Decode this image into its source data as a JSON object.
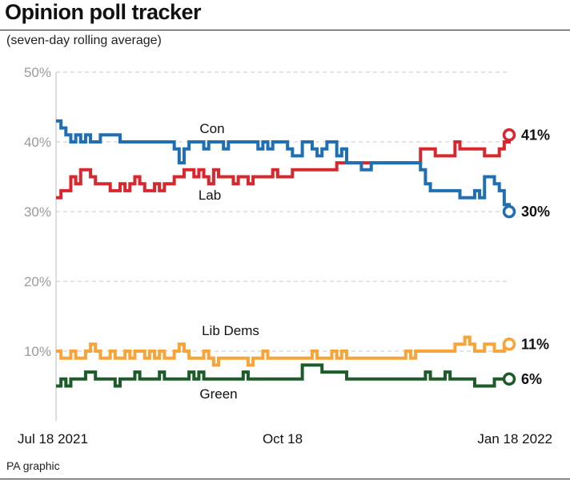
{
  "title": "Opinion poll tracker",
  "subtitle": "(seven-day rolling average)",
  "credit": "PA graphic",
  "chart_data": {
    "type": "line",
    "title": "Opinion poll tracker",
    "subtitle": "(seven-day rolling average)",
    "ylabel": "",
    "xlabel": "",
    "ylim": [
      0,
      50
    ],
    "yticks": [
      10,
      20,
      30,
      40,
      50
    ],
    "ytick_labels": [
      "10%",
      "20%",
      "30%",
      "40%",
      "50%"
    ],
    "grid": "dashed horizontal",
    "x_domain_days": [
      0,
      184
    ],
    "xticks": [
      {
        "day": 0,
        "label": "Jul 18 2021"
      },
      {
        "day": 92,
        "label": "Oct 18"
      },
      {
        "day": 184,
        "label": "Jan 18 2022"
      }
    ],
    "series": [
      {
        "name": "Con",
        "color": "#1f6fb2",
        "end_label": "30%",
        "day": [
          0,
          2,
          4,
          6,
          8,
          10,
          12,
          14,
          16,
          18,
          20,
          22,
          24,
          26,
          28,
          30,
          32,
          34,
          36,
          38,
          40,
          42,
          44,
          46,
          48,
          50,
          52,
          54,
          56,
          58,
          60,
          62,
          64,
          66,
          68,
          70,
          72,
          74,
          76,
          78,
          80,
          82,
          84,
          86,
          88,
          90,
          92,
          94,
          96,
          98,
          100,
          102,
          104,
          106,
          108,
          110,
          112,
          114,
          116,
          118,
          120,
          122,
          124,
          126,
          128,
          130,
          132,
          134,
          136,
          138,
          140,
          142,
          144,
          146,
          148,
          150,
          152,
          154,
          156,
          158,
          160,
          162,
          164,
          166,
          168,
          170,
          172,
          174,
          176,
          178,
          180,
          182,
          184
        ],
        "value": [
          43,
          42,
          41,
          40,
          41,
          40,
          41,
          40,
          40,
          41,
          41,
          41,
          41,
          40,
          40,
          40,
          40,
          40,
          40,
          40,
          40,
          40,
          40,
          40,
          39,
          37,
          39,
          40,
          40,
          40,
          39,
          40,
          40,
          40,
          39,
          40,
          40,
          40,
          40,
          40,
          40,
          39,
          40,
          39,
          40,
          40,
          40,
          39,
          38,
          38,
          40,
          40,
          39,
          38,
          39,
          40,
          40,
          38,
          39,
          37,
          37,
          37,
          36,
          36,
          37,
          37,
          37,
          37,
          37,
          37,
          37,
          37,
          37,
          37,
          36,
          34,
          33,
          33,
          33,
          33,
          33,
          33,
          32,
          32,
          32,
          33,
          32,
          35,
          35,
          34,
          33,
          31,
          30
        ]
      },
      {
        "name": "Lab",
        "color": "#d7282f",
        "end_label": "41%",
        "day": [
          0,
          2,
          4,
          6,
          8,
          10,
          12,
          14,
          16,
          18,
          20,
          22,
          24,
          26,
          28,
          30,
          32,
          34,
          36,
          38,
          40,
          42,
          44,
          46,
          48,
          50,
          52,
          54,
          56,
          58,
          60,
          62,
          64,
          66,
          68,
          70,
          72,
          74,
          76,
          78,
          80,
          82,
          84,
          86,
          88,
          90,
          92,
          94,
          96,
          98,
          100,
          102,
          104,
          106,
          108,
          110,
          112,
          114,
          116,
          118,
          120,
          122,
          124,
          126,
          128,
          130,
          132,
          134,
          136,
          138,
          140,
          142,
          144,
          146,
          148,
          150,
          152,
          154,
          156,
          158,
          160,
          162,
          164,
          166,
          168,
          170,
          172,
          174,
          176,
          178,
          180,
          182,
          184
        ],
        "value": [
          32,
          33,
          33,
          35,
          34,
          36,
          36,
          35,
          34,
          34,
          34,
          33,
          33,
          34,
          33,
          34,
          35,
          34,
          33,
          33,
          34,
          33,
          34,
          34,
          35,
          35,
          36,
          36,
          35,
          36,
          35,
          34,
          36,
          35,
          35,
          35,
          34,
          35,
          35,
          34,
          35,
          35,
          35,
          35,
          36,
          35,
          35,
          35,
          36,
          36,
          36,
          36,
          36,
          36,
          36,
          36,
          36,
          37,
          37,
          37,
          37,
          37,
          37,
          37,
          37,
          37,
          37,
          37,
          37,
          37,
          37,
          37,
          37,
          37,
          39,
          39,
          39,
          38,
          38,
          38,
          38,
          40,
          39,
          39,
          39,
          39,
          39,
          38,
          38,
          38,
          39,
          40,
          41
        ]
      },
      {
        "name": "Lib Dems",
        "color": "#f7a53a",
        "end_label": "11%",
        "day": [
          0,
          2,
          4,
          6,
          8,
          10,
          12,
          14,
          16,
          18,
          20,
          22,
          24,
          26,
          28,
          30,
          32,
          34,
          36,
          38,
          40,
          42,
          44,
          46,
          48,
          50,
          52,
          54,
          56,
          58,
          60,
          62,
          64,
          66,
          68,
          70,
          72,
          74,
          76,
          78,
          80,
          82,
          84,
          86,
          88,
          90,
          92,
          94,
          96,
          98,
          100,
          102,
          104,
          106,
          108,
          110,
          112,
          114,
          116,
          118,
          120,
          122,
          124,
          126,
          128,
          130,
          132,
          134,
          136,
          138,
          140,
          142,
          144,
          146,
          148,
          150,
          152,
          154,
          156,
          158,
          160,
          162,
          164,
          166,
          168,
          170,
          172,
          174,
          176,
          178,
          180,
          182,
          184
        ],
        "value": [
          10,
          9,
          9,
          10,
          9,
          9,
          10,
          11,
          10,
          9,
          9,
          10,
          9,
          9,
          10,
          9,
          10,
          10,
          9,
          10,
          9,
          10,
          9,
          9,
          10,
          11,
          10,
          9,
          9,
          9,
          10,
          9,
          8,
          9,
          9,
          9,
          9,
          9,
          9,
          8,
          9,
          9,
          10,
          9,
          9,
          9,
          9,
          9,
          9,
          9,
          9,
          9,
          10,
          9,
          9,
          9,
          10,
          9,
          10,
          9,
          9,
          9,
          9,
          9,
          9,
          9,
          9,
          9,
          9,
          9,
          9,
          10,
          9,
          10,
          10,
          10,
          10,
          10,
          10,
          10,
          10,
          11,
          11,
          12,
          11,
          10,
          10,
          11,
          11,
          10,
          10,
          11,
          11
        ]
      },
      {
        "name": "Green",
        "color": "#1d5c2a",
        "end_label": "6%",
        "day": [
          0,
          2,
          4,
          6,
          8,
          10,
          12,
          14,
          16,
          18,
          20,
          22,
          24,
          26,
          28,
          30,
          32,
          34,
          36,
          38,
          40,
          42,
          44,
          46,
          48,
          50,
          52,
          54,
          56,
          58,
          60,
          62,
          64,
          66,
          68,
          70,
          72,
          74,
          76,
          78,
          80,
          82,
          84,
          86,
          88,
          90,
          92,
          94,
          96,
          98,
          100,
          102,
          104,
          106,
          108,
          110,
          112,
          114,
          116,
          118,
          120,
          122,
          124,
          126,
          128,
          130,
          132,
          134,
          136,
          138,
          140,
          142,
          144,
          146,
          148,
          150,
          152,
          154,
          156,
          158,
          160,
          162,
          164,
          166,
          168,
          170,
          172,
          174,
          176,
          178,
          180,
          182,
          184
        ],
        "value": [
          5,
          6,
          5,
          6,
          6,
          6,
          7,
          7,
          6,
          6,
          6,
          6,
          5,
          6,
          6,
          6,
          7,
          6,
          6,
          6,
          6,
          7,
          6,
          6,
          6,
          6,
          6,
          7,
          6,
          7,
          6,
          6,
          6,
          6,
          6,
          6,
          6,
          6,
          7,
          6,
          6,
          6,
          6,
          6,
          6,
          6,
          6,
          6,
          6,
          6,
          8,
          8,
          8,
          8,
          7,
          7,
          7,
          7,
          7,
          6,
          6,
          6,
          6,
          6,
          6,
          6,
          6,
          6,
          6,
          6,
          6,
          6,
          6,
          6,
          6,
          7,
          6,
          6,
          6,
          7,
          6,
          6,
          6,
          6,
          6,
          5,
          5,
          5,
          5,
          6,
          6,
          6,
          6
        ]
      }
    ],
    "annotations": [
      {
        "text": "Con",
        "series": "Con"
      },
      {
        "text": "Lab",
        "series": "Lab"
      },
      {
        "text": "Lib Dems",
        "series": "Lib Dems"
      },
      {
        "text": "Green",
        "series": "Green"
      }
    ]
  }
}
